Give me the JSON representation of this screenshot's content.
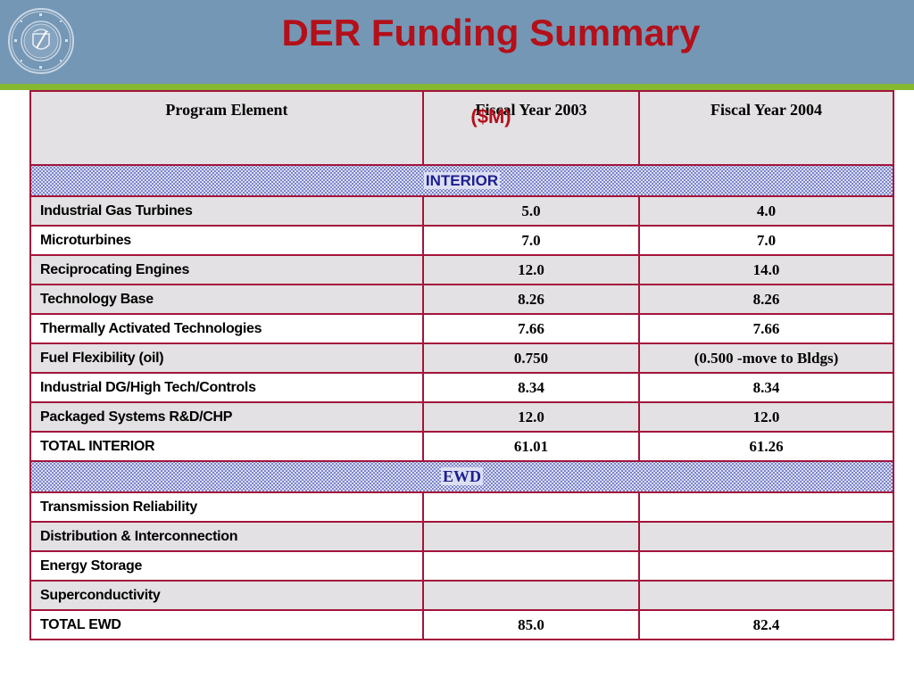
{
  "title": "DER Funding Summary",
  "subtitle": "($M)",
  "table": {
    "headers": [
      "Program Element",
      "Fiscal Year 2003",
      "Fiscal Year 2004"
    ],
    "sections": [
      {
        "name": "INTERIOR",
        "rows": [
          {
            "element": "Industrial Gas Turbines",
            "fy2003": "5.0",
            "fy2004": "4.0"
          },
          {
            "element": "Microturbines",
            "fy2003": "7.0",
            "fy2004": "7.0"
          },
          {
            "element": "Reciprocating Engines",
            "fy2003": "12.0",
            "fy2004": "14.0"
          },
          {
            "element": "Technology Base",
            "fy2003": "8.26",
            "fy2004": "8.26"
          },
          {
            "element": "Thermally Activated Technologies",
            "fy2003": "7.66",
            "fy2004": "7.66"
          },
          {
            "element": "Fuel Flexibility (oil)",
            "fy2003": "0.750",
            "fy2004": "(0.500 -move to Bldgs)"
          },
          {
            "element": "Industrial DG/High Tech/Controls",
            "fy2003": "8.34",
            "fy2004": "8.34"
          },
          {
            "element": "Packaged Systems R&D/CHP",
            "fy2003": "12.0",
            "fy2004": "12.0"
          },
          {
            "element": "TOTAL INTERIOR",
            "fy2003": "61.01",
            "fy2004": "61.26"
          }
        ]
      },
      {
        "name": "EWD",
        "rows": [
          {
            "element": "Transmission Reliability",
            "fy2003": "",
            "fy2004": ""
          },
          {
            "element": "Distribution & Interconnection",
            "fy2003": "",
            "fy2004": ""
          },
          {
            "element": "Energy Storage",
            "fy2003": "",
            "fy2004": ""
          },
          {
            "element": "Superconductivity",
            "fy2003": "",
            "fy2004": ""
          },
          {
            "element": "TOTAL EWD",
            "fy2003": "85.0",
            "fy2004": "82.4"
          }
        ]
      }
    ]
  },
  "colors": {
    "title": "#b3101a",
    "header_band": "#7497b5",
    "accent_line": "#86b830",
    "table_border": "#a3143b",
    "row_shade": "#e3e1e3",
    "section_text": "#1c1f8f"
  },
  "logo_icon": "department-of-energy-seal-icon"
}
